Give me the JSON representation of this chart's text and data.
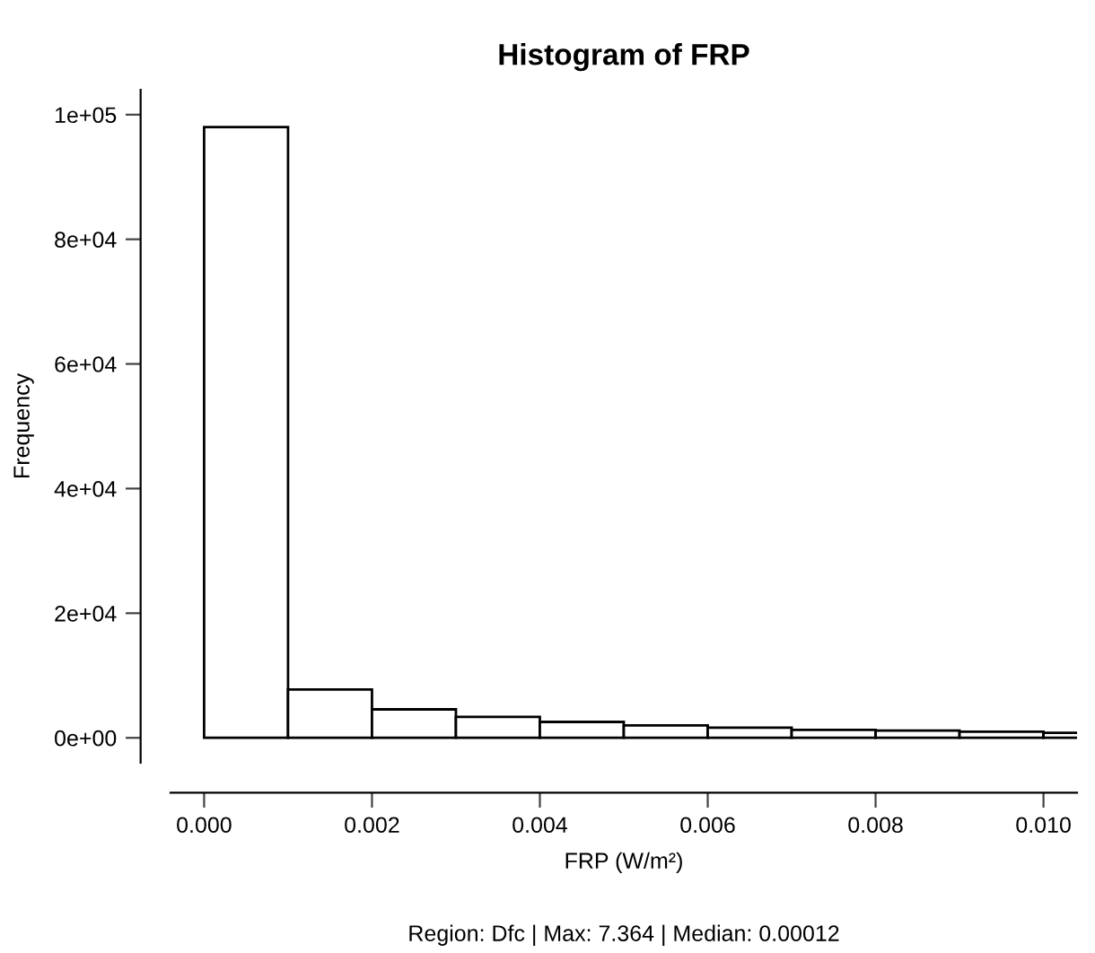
{
  "chart_data": {
    "type": "histogram",
    "title": "Histogram of FRP",
    "xlabel": "FRP (W/m²)",
    "ylabel": "Frequency",
    "annotations": [
      "Region: Dfc | Max: 7.364 | Median: 0.00012"
    ],
    "bins": [
      0,
      0.001,
      0.002,
      0.003,
      0.004,
      0.005,
      0.006,
      0.007,
      0.008,
      0.009,
      0.01,
      0.011
    ],
    "values": [
      98000,
      7750,
      4570,
      3370,
      2550,
      2000,
      1640,
      1280,
      1180,
      1000,
      820
    ],
    "color": "#ffffff",
    "xlim": [
      -0.0004,
      0.0104
    ],
    "ylim": [
      -4000,
      104000
    ],
    "xticks": [
      {
        "value": 0,
        "label": "0.000"
      },
      {
        "value": 0.002,
        "label": "0.002"
      },
      {
        "value": 0.004,
        "label": "0.004"
      },
      {
        "value": 0.006,
        "label": "0.006"
      },
      {
        "value": 0.008,
        "label": "0.008"
      },
      {
        "value": 0.01,
        "label": "0.010"
      }
    ],
    "yticks": [
      {
        "value": 0,
        "label": "0e+00"
      },
      {
        "value": 20000,
        "label": "2e+04"
      },
      {
        "value": 40000,
        "label": "4e+04"
      },
      {
        "value": 60000,
        "label": "6e+04"
      },
      {
        "value": 80000,
        "label": "8e+04"
      },
      {
        "value": 100000,
        "label": "1e+05"
      }
    ],
    "grid": false,
    "legend": false
  }
}
